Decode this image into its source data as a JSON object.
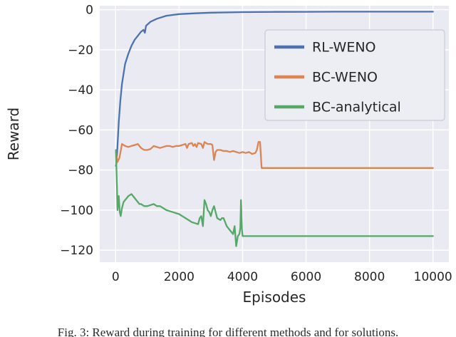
{
  "caption": "Fig. 3: Reward during training for different methods and for solutions.",
  "chart_data": {
    "type": "line",
    "title": "",
    "xlabel": "Episodes",
    "ylabel": "Reward",
    "xlim": [
      -500,
      10500
    ],
    "ylim": [
      -126,
      2
    ],
    "xticks": [
      0,
      2000,
      4000,
      6000,
      8000,
      10000
    ],
    "yticks": [
      0,
      -20,
      -40,
      -60,
      -80,
      -100,
      -120
    ],
    "grid": true,
    "plot_background": "#eaeaf2",
    "grid_color": "#ffffff",
    "tick_label_color": "#262626",
    "legend_position": "upper right",
    "series": [
      {
        "name": "RL-WENO",
        "color": "#4C72B0",
        "points": [
          [
            10,
            -78
          ],
          [
            30,
            -76
          ],
          [
            60,
            -68
          ],
          [
            100,
            -56
          ],
          [
            150,
            -45
          ],
          [
            200,
            -37
          ],
          [
            300,
            -27
          ],
          [
            400,
            -22
          ],
          [
            500,
            -18
          ],
          [
            600,
            -15
          ],
          [
            700,
            -13
          ],
          [
            800,
            -11
          ],
          [
            880,
            -10
          ],
          [
            920,
            -11.5
          ],
          [
            960,
            -8
          ],
          [
            1100,
            -6
          ],
          [
            1300,
            -4.5
          ],
          [
            1600,
            -3
          ],
          [
            2000,
            -2.2
          ],
          [
            2500,
            -1.8
          ],
          [
            3000,
            -1.5
          ],
          [
            4000,
            -1.2
          ],
          [
            5000,
            -1.1
          ],
          [
            6000,
            -1.05
          ],
          [
            7000,
            -1
          ],
          [
            8000,
            -1
          ],
          [
            9000,
            -1
          ],
          [
            10000,
            -1
          ]
        ]
      },
      {
        "name": "BC-WENO",
        "color": "#DD8452",
        "points": [
          [
            10,
            -71
          ],
          [
            60,
            -76
          ],
          [
            120,
            -74
          ],
          [
            200,
            -67
          ],
          [
            300,
            -68
          ],
          [
            400,
            -68.5
          ],
          [
            500,
            -68
          ],
          [
            600,
            -67.5
          ],
          [
            700,
            -67
          ],
          [
            800,
            -69
          ],
          [
            900,
            -70
          ],
          [
            1000,
            -70
          ],
          [
            1100,
            -69.5
          ],
          [
            1200,
            -68
          ],
          [
            1300,
            -68.5
          ],
          [
            1400,
            -69
          ],
          [
            1500,
            -68.5
          ],
          [
            1600,
            -68
          ],
          [
            1700,
            -68
          ],
          [
            1800,
            -68.5
          ],
          [
            1900,
            -68
          ],
          [
            2000,
            -68
          ],
          [
            2100,
            -67.5
          ],
          [
            2200,
            -67
          ],
          [
            2250,
            -69
          ],
          [
            2300,
            -67
          ],
          [
            2400,
            -66.5
          ],
          [
            2450,
            -68
          ],
          [
            2500,
            -67
          ],
          [
            2550,
            -68.5
          ],
          [
            2600,
            -66.5
          ],
          [
            2700,
            -67
          ],
          [
            2750,
            -69
          ],
          [
            2800,
            -66
          ],
          [
            2900,
            -67
          ],
          [
            3000,
            -67
          ],
          [
            3050,
            -67.5
          ],
          [
            3100,
            -75
          ],
          [
            3150,
            -71
          ],
          [
            3200,
            -70
          ],
          [
            3300,
            -70
          ],
          [
            3400,
            -70.5
          ],
          [
            3500,
            -70.5
          ],
          [
            3600,
            -71
          ],
          [
            3700,
            -70.5
          ],
          [
            3800,
            -71
          ],
          [
            3900,
            -71.5
          ],
          [
            4000,
            -71
          ],
          [
            4100,
            -71.5
          ],
          [
            4200,
            -71
          ],
          [
            4300,
            -72
          ],
          [
            4400,
            -71.5
          ],
          [
            4450,
            -70
          ],
          [
            4500,
            -66
          ],
          [
            4550,
            -66
          ],
          [
            4600,
            -79
          ],
          [
            5000,
            -79
          ],
          [
            6000,
            -79
          ],
          [
            7000,
            -79
          ],
          [
            8000,
            -79
          ],
          [
            9000,
            -79
          ],
          [
            10000,
            -79
          ]
        ]
      },
      {
        "name": "BC-analytical",
        "color": "#55A868",
        "points": [
          [
            10,
            -70
          ],
          [
            40,
            -88
          ],
          [
            60,
            -100
          ],
          [
            80,
            -97
          ],
          [
            100,
            -93
          ],
          [
            130,
            -101
          ],
          [
            160,
            -103
          ],
          [
            200,
            -99
          ],
          [
            250,
            -96
          ],
          [
            300,
            -95
          ],
          [
            350,
            -94
          ],
          [
            400,
            -93
          ],
          [
            450,
            -92.5
          ],
          [
            500,
            -92
          ],
          [
            550,
            -93
          ],
          [
            600,
            -94
          ],
          [
            650,
            -95
          ],
          [
            700,
            -96
          ],
          [
            750,
            -97
          ],
          [
            800,
            -97
          ],
          [
            850,
            -97.5
          ],
          [
            900,
            -98
          ],
          [
            1000,
            -98
          ],
          [
            1100,
            -97.5
          ],
          [
            1200,
            -97
          ],
          [
            1300,
            -98
          ],
          [
            1400,
            -98
          ],
          [
            1500,
            -99
          ],
          [
            1600,
            -100
          ],
          [
            1700,
            -100.5
          ],
          [
            1800,
            -101
          ],
          [
            1900,
            -101.5
          ],
          [
            2000,
            -102
          ],
          [
            2100,
            -103
          ],
          [
            2200,
            -104
          ],
          [
            2300,
            -105
          ],
          [
            2400,
            -106
          ],
          [
            2500,
            -106.5
          ],
          [
            2600,
            -107
          ],
          [
            2650,
            -104
          ],
          [
            2700,
            -103
          ],
          [
            2750,
            -108
          ],
          [
            2800,
            -95
          ],
          [
            2850,
            -97
          ],
          [
            2900,
            -100
          ],
          [
            2950,
            -101
          ],
          [
            3000,
            -103
          ],
          [
            3050,
            -100
          ],
          [
            3100,
            -98
          ],
          [
            3150,
            -101
          ],
          [
            3200,
            -104
          ],
          [
            3300,
            -105
          ],
          [
            3350,
            -104
          ],
          [
            3400,
            -104
          ],
          [
            3450,
            -106
          ],
          [
            3500,
            -108
          ],
          [
            3550,
            -109
          ],
          [
            3600,
            -110
          ],
          [
            3650,
            -111
          ],
          [
            3700,
            -112
          ],
          [
            3750,
            -108
          ],
          [
            3800,
            -118
          ],
          [
            3850,
            -113
          ],
          [
            3900,
            -112
          ],
          [
            3930,
            -109
          ],
          [
            3950,
            -95
          ],
          [
            3980,
            -110
          ],
          [
            4000,
            -113
          ],
          [
            5000,
            -113
          ],
          [
            6000,
            -113
          ],
          [
            7000,
            -113
          ],
          [
            8000,
            -113
          ],
          [
            9000,
            -113
          ],
          [
            10000,
            -113
          ]
        ]
      }
    ]
  }
}
